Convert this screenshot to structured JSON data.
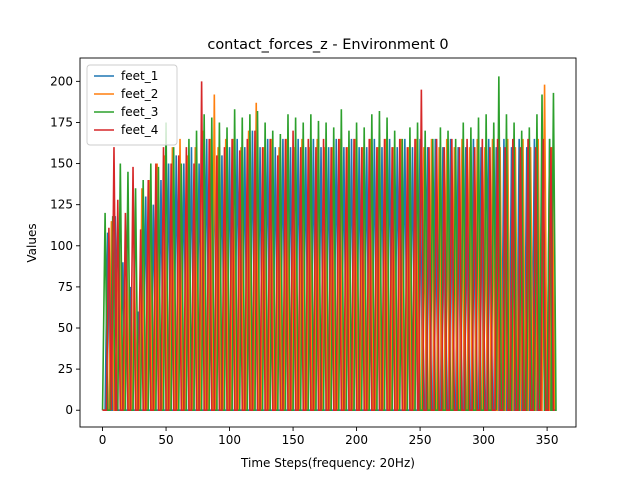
{
  "chart_data": {
    "type": "line",
    "title": "contact_forces_z - Environment 0",
    "xlabel": "Time Steps(frequency: 20Hz)",
    "ylabel": "Values",
    "xlim": [
      -17.75,
      372.75
    ],
    "ylim": [
      -10.2,
      214.2
    ],
    "xticks": [
      0,
      50,
      100,
      150,
      200,
      250,
      300,
      350
    ],
    "yticks": [
      0,
      25,
      50,
      75,
      100,
      125,
      150,
      175,
      200
    ],
    "legend_position": "upper-left",
    "grid": false,
    "series": [
      {
        "name": "feet_1",
        "color": "#1f77b4",
        "pulses": [
          [
            4,
            108
          ],
          [
            10,
            118
          ],
          [
            16,
            90
          ],
          [
            22,
            75
          ],
          [
            28,
            60
          ],
          [
            34,
            130
          ],
          [
            40,
            125
          ],
          [
            46,
            140
          ],
          [
            52,
            150
          ],
          [
            58,
            155
          ],
          [
            64,
            150
          ],
          [
            70,
            160
          ],
          [
            76,
            150
          ],
          [
            82,
            165
          ],
          [
            88,
            160
          ],
          [
            94,
            155
          ],
          [
            100,
            160
          ],
          [
            106,
            165
          ],
          [
            112,
            160
          ],
          [
            118,
            170
          ],
          [
            124,
            160
          ],
          [
            130,
            165
          ],
          [
            136,
            160
          ],
          [
            142,
            165
          ],
          [
            148,
            160
          ],
          [
            154,
            165
          ],
          [
            160,
            160
          ],
          [
            166,
            165
          ],
          [
            172,
            160
          ],
          [
            178,
            160
          ],
          [
            184,
            165
          ],
          [
            190,
            160
          ],
          [
            196,
            165
          ],
          [
            202,
            160
          ],
          [
            208,
            160
          ],
          [
            214,
            165
          ],
          [
            220,
            160
          ],
          [
            226,
            165
          ],
          [
            232,
            160
          ],
          [
            238,
            165
          ],
          [
            244,
            160
          ],
          [
            250,
            165
          ],
          [
            256,
            160
          ],
          [
            262,
            165
          ],
          [
            268,
            160
          ],
          [
            274,
            165
          ],
          [
            280,
            160
          ],
          [
            286,
            160
          ],
          [
            292,
            165
          ],
          [
            298,
            160
          ],
          [
            304,
            165
          ],
          [
            310,
            160
          ],
          [
            316,
            165
          ],
          [
            322,
            160
          ],
          [
            328,
            165
          ],
          [
            334,
            160
          ],
          [
            340,
            165
          ],
          [
            346,
            160
          ],
          [
            352,
            165
          ]
        ]
      },
      {
        "name": "feet_2",
        "color": "#ff7f0e",
        "pulses": [
          [
            7,
            115
          ],
          [
            13,
            110
          ],
          [
            19,
            100
          ],
          [
            25,
            90
          ],
          [
            31,
            135
          ],
          [
            37,
            140
          ],
          [
            43,
            150
          ],
          [
            49,
            155
          ],
          [
            55,
            160
          ],
          [
            61,
            165
          ],
          [
            67,
            155
          ],
          [
            73,
            160
          ],
          [
            79,
            170
          ],
          [
            85,
            165
          ],
          [
            88,
            192
          ],
          [
            91,
            160
          ],
          [
            97,
            165
          ],
          [
            103,
            165
          ],
          [
            109,
            160
          ],
          [
            115,
            170
          ],
          [
            121,
            187
          ],
          [
            127,
            160
          ],
          [
            133,
            165
          ],
          [
            139,
            160
          ],
          [
            145,
            165
          ],
          [
            151,
            160
          ],
          [
            157,
            165
          ],
          [
            163,
            160
          ],
          [
            169,
            165
          ],
          [
            175,
            160
          ],
          [
            181,
            160
          ],
          [
            187,
            165
          ],
          [
            193,
            160
          ],
          [
            199,
            165
          ],
          [
            205,
            160
          ],
          [
            211,
            165
          ],
          [
            217,
            160
          ],
          [
            223,
            165
          ],
          [
            229,
            160
          ],
          [
            235,
            165
          ],
          [
            241,
            160
          ],
          [
            247,
            165
          ],
          [
            253,
            160
          ],
          [
            259,
            165
          ],
          [
            265,
            160
          ],
          [
            271,
            165
          ],
          [
            277,
            160
          ],
          [
            283,
            165
          ],
          [
            289,
            160
          ],
          [
            295,
            165
          ],
          [
            301,
            160
          ],
          [
            307,
            165
          ],
          [
            313,
            160
          ],
          [
            319,
            165
          ],
          [
            325,
            160
          ],
          [
            331,
            165
          ],
          [
            337,
            160
          ],
          [
            343,
            165
          ],
          [
            348,
            198
          ],
          [
            354,
            160
          ]
        ]
      },
      {
        "name": "feet_3",
        "color": "#2ca02c",
        "pulses": [
          [
            2,
            120
          ],
          [
            8,
            118
          ],
          [
            14,
            150
          ],
          [
            20,
            145
          ],
          [
            26,
            135
          ],
          [
            32,
            140
          ],
          [
            38,
            150
          ],
          [
            44,
            148
          ],
          [
            50,
            175
          ],
          [
            56,
            160
          ],
          [
            62,
            150
          ],
          [
            68,
            165
          ],
          [
            74,
            170
          ],
          [
            80,
            180
          ],
          [
            86,
            178
          ],
          [
            92,
            175
          ],
          [
            98,
            172
          ],
          [
            104,
            183
          ],
          [
            110,
            178
          ],
          [
            116,
            180
          ],
          [
            122,
            182
          ],
          [
            128,
            175
          ],
          [
            134,
            170
          ],
          [
            140,
            168
          ],
          [
            146,
            180
          ],
          [
            152,
            178
          ],
          [
            158,
            175
          ],
          [
            164,
            180
          ],
          [
            170,
            176
          ],
          [
            176,
            175
          ],
          [
            182,
            172
          ],
          [
            188,
            183
          ],
          [
            194,
            170
          ],
          [
            200,
            175
          ],
          [
            206,
            172
          ],
          [
            212,
            180
          ],
          [
            218,
            182
          ],
          [
            224,
            178
          ],
          [
            230,
            170
          ],
          [
            236,
            165
          ],
          [
            242,
            172
          ],
          [
            248,
            175
          ],
          [
            254,
            170
          ],
          [
            260,
            165
          ],
          [
            266,
            172
          ],
          [
            272,
            170
          ],
          [
            278,
            165
          ],
          [
            284,
            175
          ],
          [
            290,
            172
          ],
          [
            296,
            178
          ],
          [
            302,
            180
          ],
          [
            308,
            175
          ],
          [
            312,
            203
          ],
          [
            318,
            180
          ],
          [
            324,
            175
          ],
          [
            330,
            170
          ],
          [
            336,
            172
          ],
          [
            342,
            180
          ],
          [
            346,
            192
          ],
          [
            352,
            165
          ],
          [
            355,
            193
          ]
        ]
      },
      {
        "name": "feet_4",
        "color": "#d62728",
        "pulses": [
          [
            5,
            111
          ],
          [
            9,
            160
          ],
          [
            12,
            128
          ],
          [
            18,
            120
          ],
          [
            24,
            148
          ],
          [
            30,
            110
          ],
          [
            36,
            140
          ],
          [
            42,
            150
          ],
          [
            48,
            160
          ],
          [
            54,
            150
          ],
          [
            60,
            155
          ],
          [
            66,
            160
          ],
          [
            72,
            150
          ],
          [
            78,
            200
          ],
          [
            84,
            165
          ],
          [
            90,
            155
          ],
          [
            96,
            160
          ],
          [
            102,
            165
          ],
          [
            108,
            158
          ],
          [
            114,
            165
          ],
          [
            120,
            170
          ],
          [
            126,
            160
          ],
          [
            132,
            165
          ],
          [
            138,
            155
          ],
          [
            144,
            165
          ],
          [
            150,
            170
          ],
          [
            156,
            160
          ],
          [
            162,
            165
          ],
          [
            168,
            160
          ],
          [
            174,
            165
          ],
          [
            180,
            160
          ],
          [
            186,
            165
          ],
          [
            192,
            160
          ],
          [
            198,
            165
          ],
          [
            204,
            160
          ],
          [
            210,
            165
          ],
          [
            216,
            160
          ],
          [
            222,
            165
          ],
          [
            228,
            160
          ],
          [
            234,
            165
          ],
          [
            240,
            160
          ],
          [
            246,
            165
          ],
          [
            251,
            195
          ],
          [
            257,
            160
          ],
          [
            263,
            165
          ],
          [
            269,
            160
          ],
          [
            275,
            165
          ],
          [
            281,
            160
          ],
          [
            287,
            165
          ],
          [
            293,
            160
          ],
          [
            299,
            165
          ],
          [
            305,
            160
          ],
          [
            311,
            165
          ],
          [
            317,
            160
          ],
          [
            323,
            165
          ],
          [
            329,
            160
          ],
          [
            335,
            165
          ],
          [
            341,
            160
          ],
          [
            347,
            165
          ],
          [
            353,
            160
          ]
        ]
      }
    ]
  }
}
